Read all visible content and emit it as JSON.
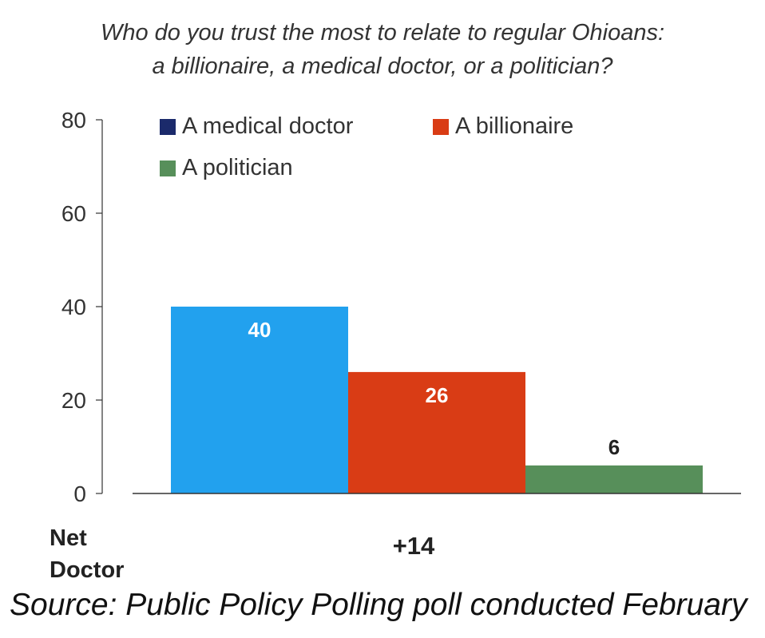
{
  "chart_data": {
    "type": "bar",
    "title_lines": [
      "Who do you trust the most to relate to regular Ohioans:",
      "a billionaire, a medical doctor, or a politician?"
    ],
    "categories": [
      "A medical doctor",
      "A billionaire",
      "A politician"
    ],
    "values": [
      40,
      26,
      6
    ],
    "value_labels": [
      "40",
      "26",
      "6"
    ],
    "colors": [
      "#22A1EE",
      "#D93C15",
      "#578F5A"
    ],
    "legend": [
      {
        "label": "A medical doctor",
        "color": "#1B2A6B"
      },
      {
        "label": "A billionaire",
        "color": "#D93C15"
      },
      {
        "label": "A politician",
        "color": "#578F5A"
      }
    ],
    "y_ticks": [
      "0",
      "20",
      "40",
      "60",
      "80"
    ],
    "ylim": [
      0,
      80
    ],
    "xlabel": "",
    "ylabel": "",
    "grid": false,
    "legend_position": "top"
  },
  "net": {
    "label_line1": "Net",
    "label_line2": "Doctor",
    "value": "+14"
  },
  "source": "Source: Public Policy Polling poll conducted February"
}
